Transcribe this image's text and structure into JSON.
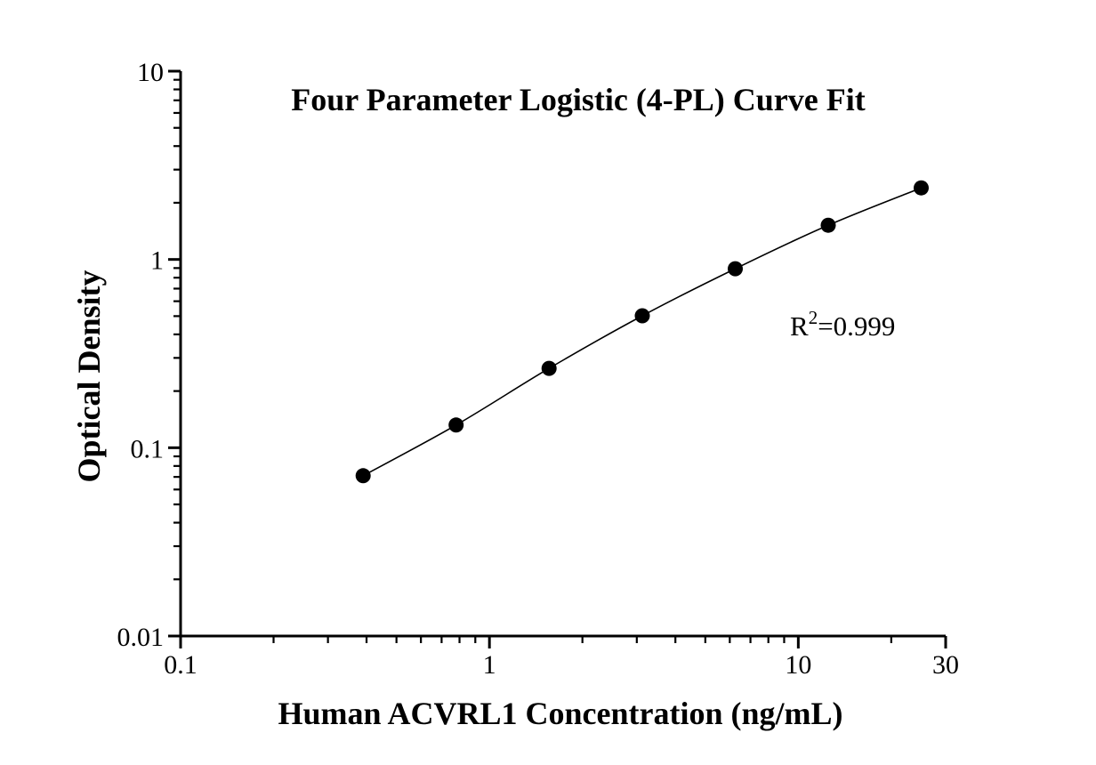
{
  "chart_data": {
    "type": "scatter",
    "title": "Four Parameter Logistic (4-PL) Curve Fit",
    "xlabel": "Human ACVRL1 Concentration (ng/mL)",
    "ylabel": "Optical Density",
    "xscale": "log",
    "yscale": "log",
    "xlim": [
      0.1,
      30
    ],
    "ylim": [
      0.01,
      10
    ],
    "x": [
      0.39,
      0.78,
      1.56,
      3.125,
      6.25,
      12.5,
      25
    ],
    "y": [
      0.071,
      0.132,
      0.264,
      0.502,
      0.893,
      1.52,
      2.4
    ],
    "x_major_ticks": [
      0.1,
      1,
      10,
      30
    ],
    "x_major_tick_labels": [
      "0.1",
      "1",
      "10",
      "30"
    ],
    "y_major_ticks": [
      0.01,
      0.1,
      1,
      10
    ],
    "y_major_tick_labels": [
      "0.01",
      "0.1",
      "1",
      "10"
    ],
    "annotation": {
      "base": "R",
      "sup": "2",
      "rest": "=0.999"
    },
    "grid": false,
    "legend": null,
    "line_color": "#000000",
    "marker_color": "#000000",
    "axis_color": "#000000",
    "background_color": "#ffffff"
  }
}
